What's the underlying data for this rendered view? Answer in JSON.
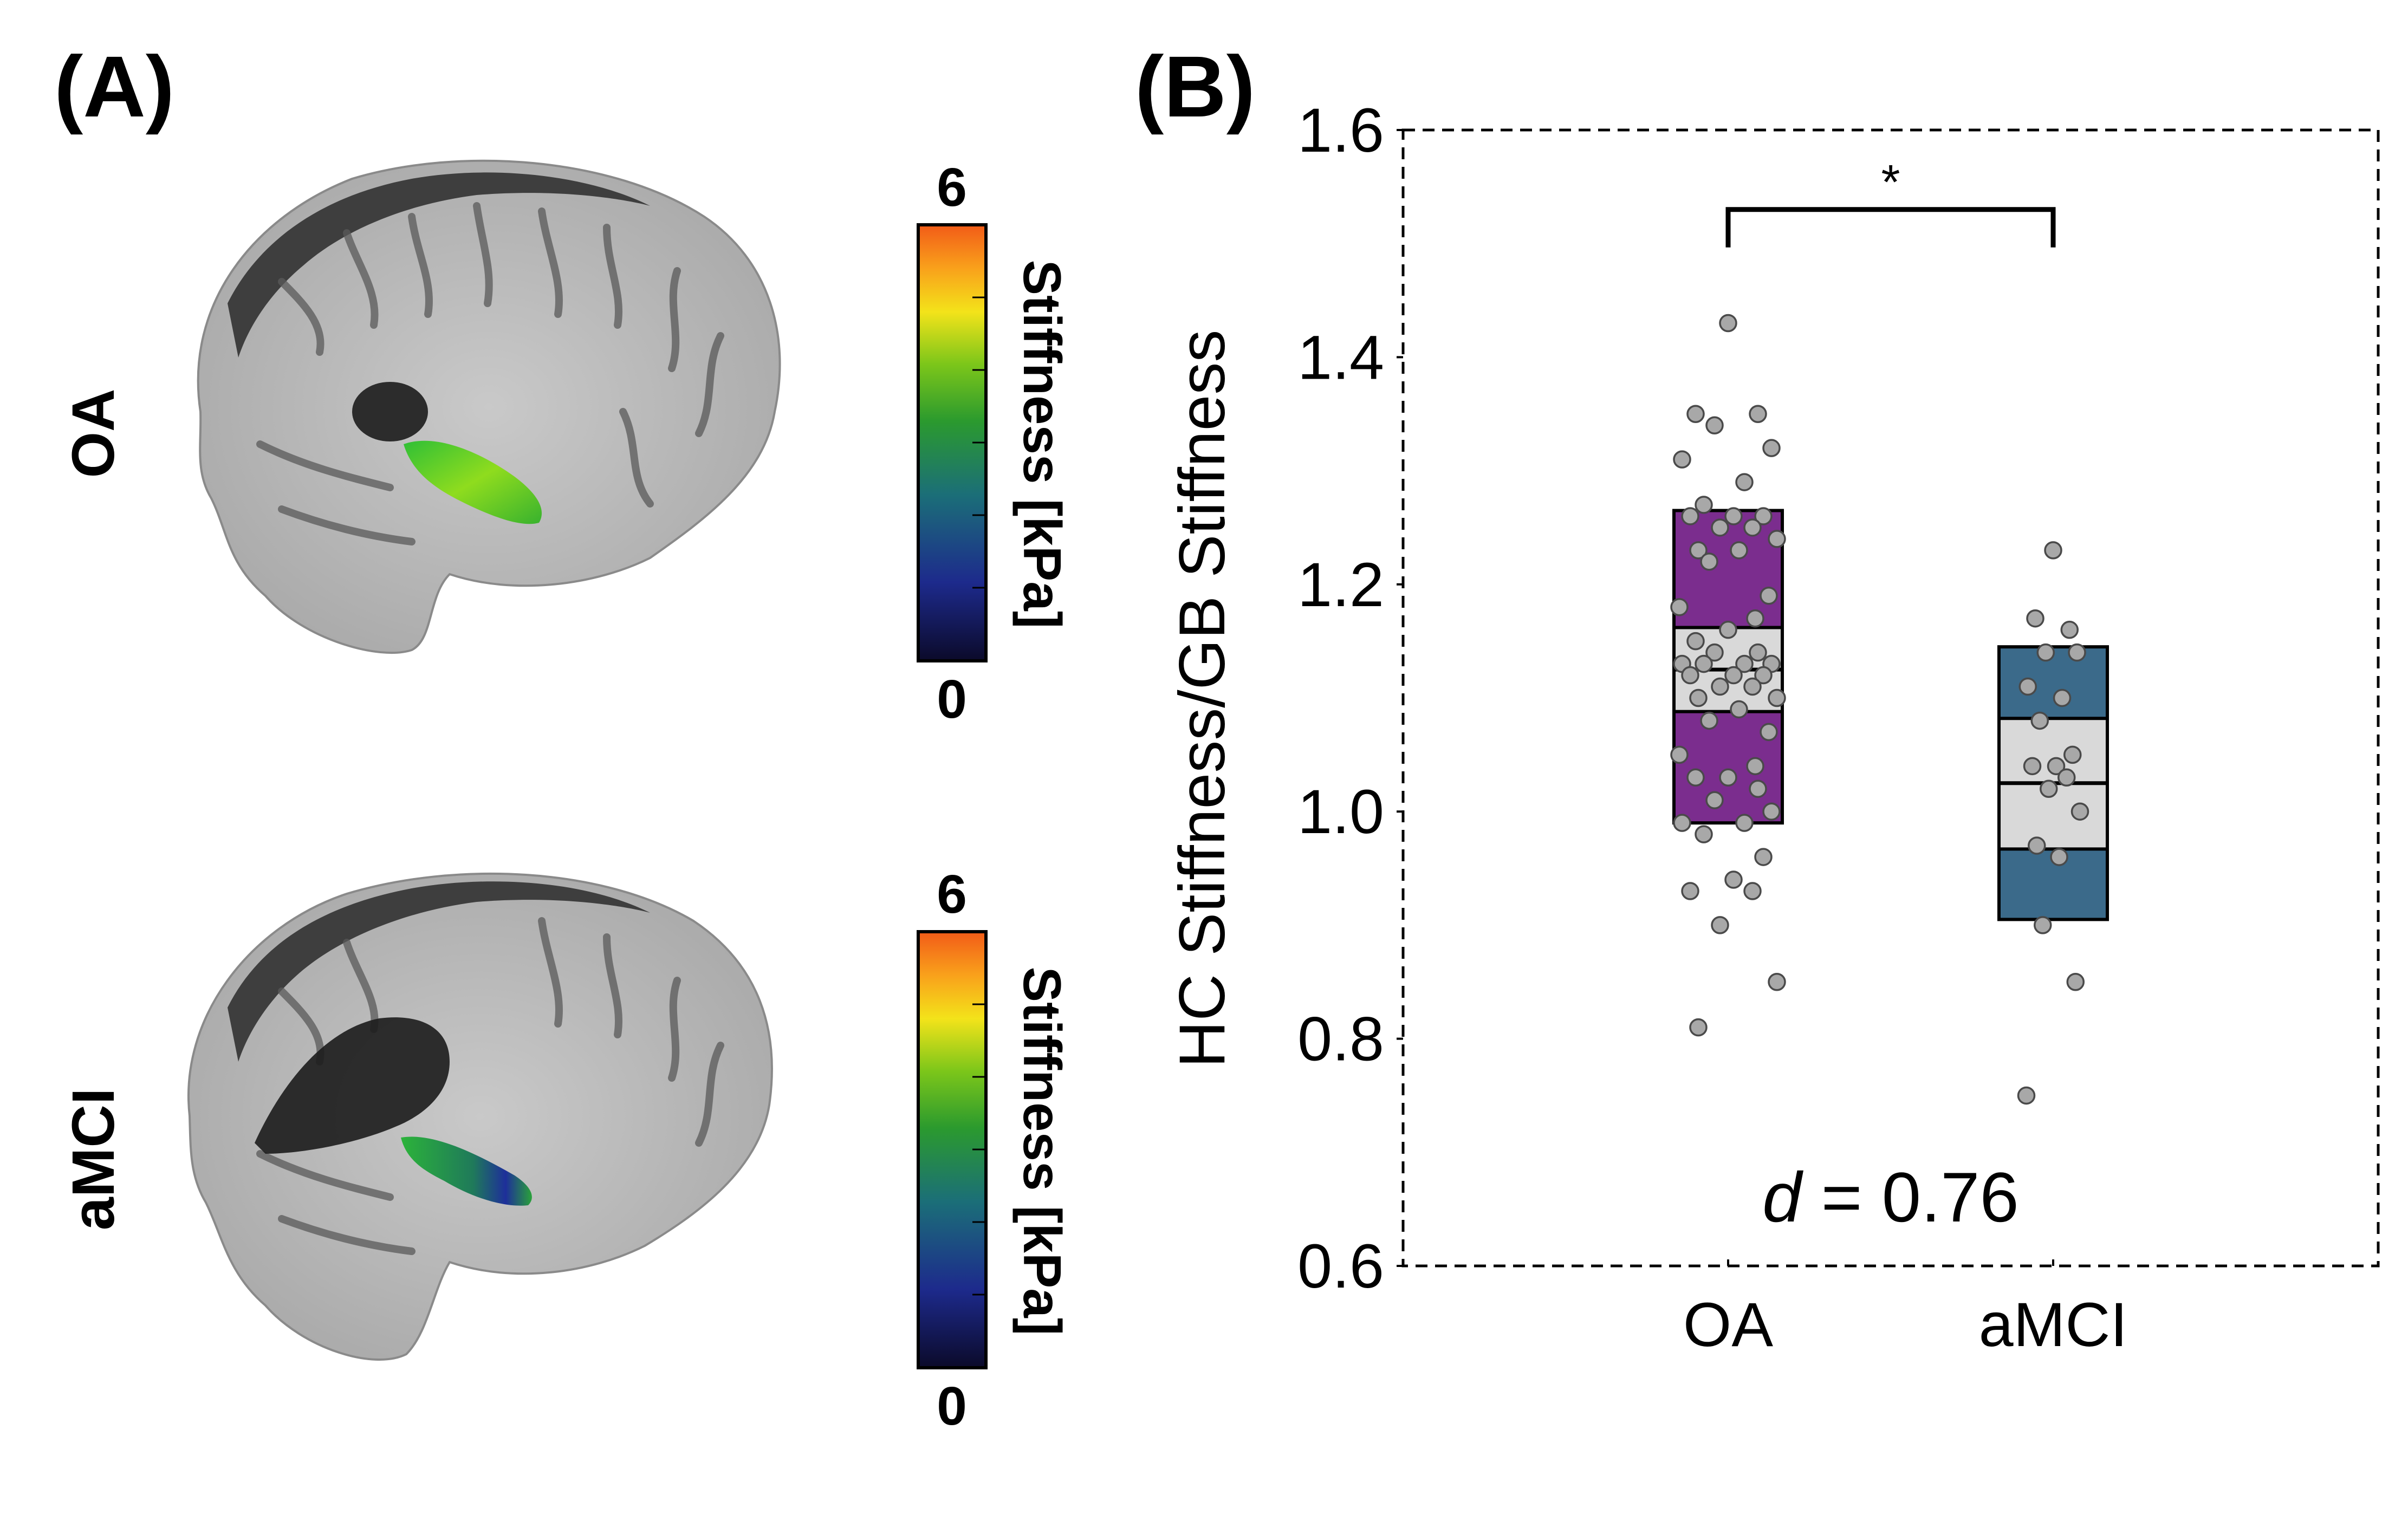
{
  "panel_a": {
    "label": "(A)",
    "rows": [
      {
        "label": "OA",
        "colorbar": {
          "max_label": "6",
          "min_label": "0",
          "title": "Stiffness [kPa]"
        }
      },
      {
        "label": "aMCI",
        "colorbar": {
          "max_label": "6",
          "min_label": "0",
          "title": "Stiffness [kPa]"
        }
      }
    ]
  },
  "panel_b": {
    "label": "(B)"
  },
  "chart_data": {
    "type": "box",
    "ylabel": "HC Stiffness/GB Stiffness",
    "xlabel": "",
    "ylim": [
      0.6,
      1.6
    ],
    "yticks": [
      "0.6",
      "0.8",
      "1.0",
      "1.2",
      "1.4",
      "1.6"
    ],
    "ytick_values": [
      0.6,
      0.8,
      1.0,
      1.2,
      1.4,
      1.6
    ],
    "categories": [
      "OA",
      "aMCI"
    ],
    "significance": {
      "text": "*",
      "between": [
        "OA",
        "aMCI"
      ],
      "y": 1.53
    },
    "effect_size": {
      "symbol": "d",
      "text": " = 0.76"
    },
    "groups": [
      {
        "name": "OA",
        "color": "#7b2d8e",
        "box_low": 0.99,
        "box_high": 1.265,
        "mean": 1.125,
        "ci_low": 1.088,
        "ci_high": 1.162,
        "points": [
          1.43,
          1.35,
          1.35,
          1.34,
          1.32,
          1.31,
          1.29,
          1.27,
          1.26,
          1.26,
          1.26,
          1.25,
          1.25,
          1.24,
          1.23,
          1.23,
          1.22,
          1.19,
          1.18,
          1.17,
          1.16,
          1.15,
          1.14,
          1.14,
          1.13,
          1.13,
          1.13,
          1.13,
          1.12,
          1.12,
          1.12,
          1.11,
          1.11,
          1.1,
          1.1,
          1.09,
          1.08,
          1.07,
          1.05,
          1.04,
          1.03,
          1.03,
          1.02,
          1.01,
          1.0,
          0.99,
          0.99,
          0.98,
          0.96,
          0.94,
          0.93,
          0.93,
          0.9,
          0.85,
          0.81
        ]
      },
      {
        "name": "aMCI",
        "color": "#3b6a8a",
        "box_low": 0.905,
        "box_high": 1.145,
        "mean": 1.025,
        "ci_low": 0.967,
        "ci_high": 1.082,
        "points": [
          1.23,
          1.17,
          1.16,
          1.14,
          1.14,
          1.11,
          1.1,
          1.08,
          1.05,
          1.04,
          1.04,
          1.03,
          1.02,
          1.0,
          0.97,
          0.96,
          0.9,
          0.85,
          0.75
        ]
      }
    ]
  }
}
